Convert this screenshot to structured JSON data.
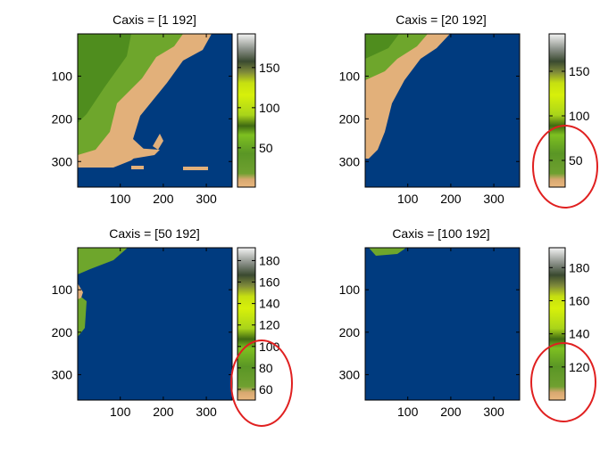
{
  "figure": {
    "highlight_color": "#e02020"
  },
  "chart_data": [
    {
      "type": "heatmap",
      "title": "Caxis = [1 192]",
      "xticks": [
        100,
        200,
        300
      ],
      "yticks": [
        100,
        200,
        300
      ],
      "xlim": [
        1,
        360
      ],
      "ylim": [
        1,
        360
      ],
      "caxis": [
        1,
        192
      ],
      "colorbar_ticks": [
        50,
        100,
        150
      ],
      "colorbar_highlighted": false
    },
    {
      "type": "heatmap",
      "title": "Caxis = [20 192]",
      "xticks": [
        100,
        200,
        300
      ],
      "yticks": [
        100,
        200,
        300
      ],
      "xlim": [
        1,
        360
      ],
      "ylim": [
        1,
        360
      ],
      "caxis": [
        20,
        192
      ],
      "colorbar_ticks": [
        50,
        100,
        150
      ],
      "colorbar_highlighted": true
    },
    {
      "type": "heatmap",
      "title": "Caxis = [50 192]",
      "xticks": [
        100,
        200,
        300
      ],
      "yticks": [
        100,
        200,
        300
      ],
      "xlim": [
        1,
        360
      ],
      "ylim": [
        1,
        360
      ],
      "caxis": [
        50,
        192
      ],
      "colorbar_ticks": [
        60,
        80,
        100,
        120,
        140,
        160,
        180
      ],
      "colorbar_highlighted": true
    },
    {
      "type": "heatmap",
      "title": "Caxis = [100 192]",
      "xticks": [
        100,
        200,
        300
      ],
      "yticks": [
        100,
        200,
        300
      ],
      "xlim": [
        1,
        360
      ],
      "ylim": [
        1,
        360
      ],
      "caxis": [
        100,
        192
      ],
      "colorbar_ticks": [
        120,
        140,
        160,
        180
      ],
      "colorbar_highlighted": true
    }
  ]
}
